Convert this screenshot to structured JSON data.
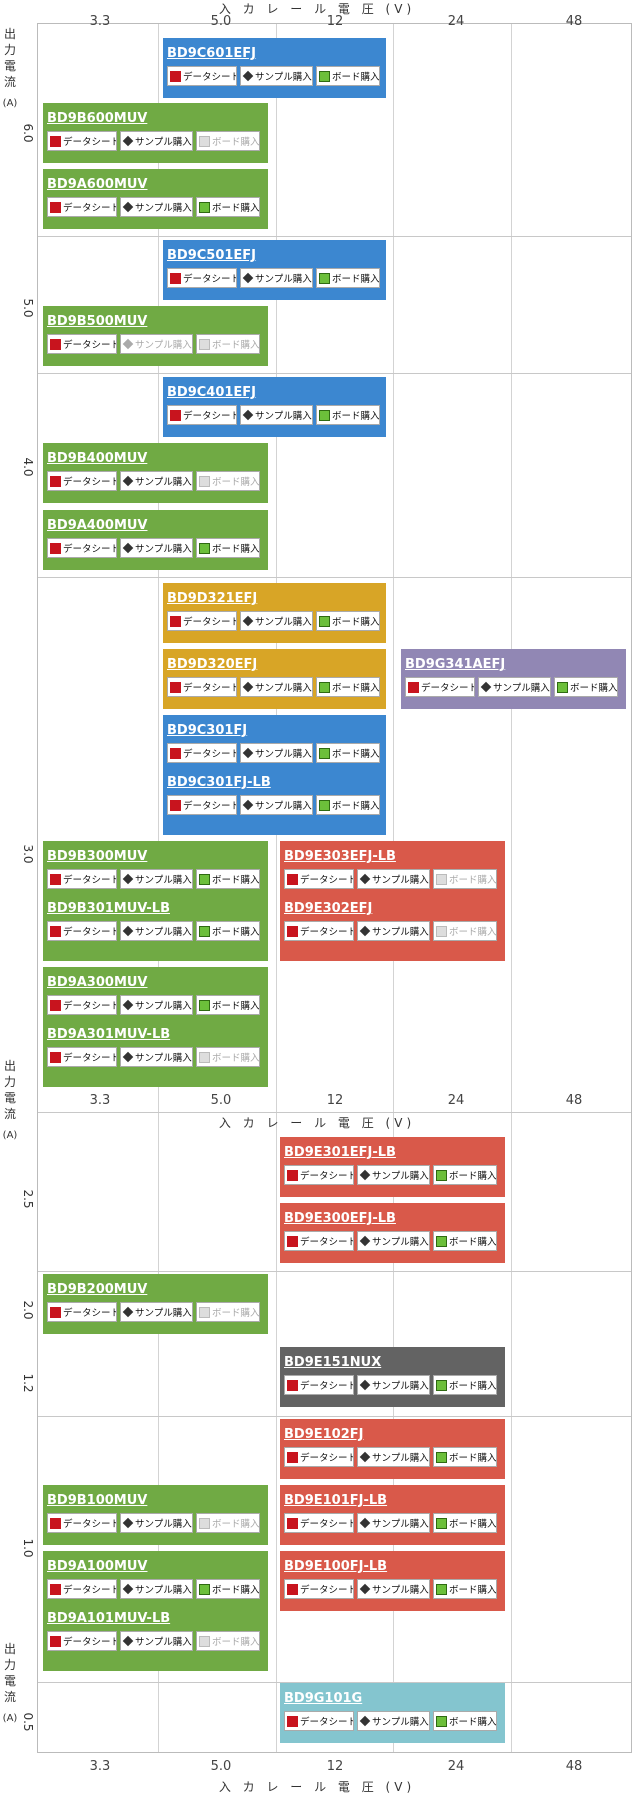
{
  "x_axis": {
    "title": "入 カ レ ー ル 電 圧 (V)",
    "ticks": [
      "3.3",
      "5.0",
      "12",
      "24",
      "48"
    ]
  },
  "y_axis": {
    "chars": [
      "出",
      "力",
      "電",
      "流"
    ],
    "unit": "(A)",
    "ticks": [
      "6.0",
      "5.0",
      "4.0",
      "3.0",
      "2.5",
      "2.0",
      "1.2",
      "1.0",
      "0.5"
    ]
  },
  "buttons": {
    "datasheet": "データシート",
    "sample": "サンプル購入",
    "board": "ボード購入"
  },
  "colors": {
    "green": "#70aa44",
    "blue": "#3c87d0",
    "gold": "#d8a526",
    "purple": "#9187b4",
    "red": "#d9594a",
    "gray": "#636363",
    "cyan": "#84c5cf"
  },
  "products": [
    {
      "name": "BD9C601EFJ",
      "color": "blue",
      "sample": true,
      "board": true
    },
    {
      "name": "BD9B600MUV",
      "color": "green",
      "sample": true,
      "board": false
    },
    {
      "name": "BD9A600MUV",
      "color": "green",
      "sample": true,
      "board": true
    },
    {
      "name": "BD9C501EFJ",
      "color": "blue",
      "sample": true,
      "board": true
    },
    {
      "name": "BD9B500MUV",
      "color": "green",
      "sample": false,
      "board": false
    },
    {
      "name": "BD9C401EFJ",
      "color": "blue",
      "sample": true,
      "board": true
    },
    {
      "name": "BD9B400MUV",
      "color": "green",
      "sample": true,
      "board": false
    },
    {
      "name": "BD9A400MUV",
      "color": "green",
      "sample": true,
      "board": true
    },
    {
      "name": "BD9D321EFJ",
      "color": "gold",
      "sample": true,
      "board": true
    },
    {
      "name": "BD9D320EFJ",
      "color": "gold",
      "sample": true,
      "board": true
    },
    {
      "name": "BD9G341AEFJ",
      "color": "purple",
      "sample": true,
      "board": true
    },
    {
      "name": "BD9C301FJ",
      "color": "blue",
      "sample": true,
      "board": true
    },
    {
      "name": "BD9C301FJ-LB",
      "color": "blue",
      "sample": true,
      "board": true
    },
    {
      "name": "BD9B300MUV",
      "color": "green",
      "sample": true,
      "board": true
    },
    {
      "name": "BD9B301MUV-LB",
      "color": "green",
      "sample": true,
      "board": true
    },
    {
      "name": "BD9E303EFJ-LB",
      "color": "red",
      "sample": true,
      "board": false
    },
    {
      "name": "BD9E302EFJ",
      "color": "red",
      "sample": true,
      "board": false
    },
    {
      "name": "BD9A300MUV",
      "color": "green",
      "sample": true,
      "board": true
    },
    {
      "name": "BD9A301MUV-LB",
      "color": "green",
      "sample": true,
      "board": false
    },
    {
      "name": "BD9E301EFJ-LB",
      "color": "red",
      "sample": true,
      "board": true
    },
    {
      "name": "BD9E300EFJ-LB",
      "color": "red",
      "sample": true,
      "board": true
    },
    {
      "name": "BD9B200MUV",
      "color": "green",
      "sample": true,
      "board": false
    },
    {
      "name": "BD9E151NUX",
      "color": "gray",
      "sample": true,
      "board": true
    },
    {
      "name": "BD9E102FJ",
      "color": "red",
      "sample": true,
      "board": true
    },
    {
      "name": "BD9B100MUV",
      "color": "green",
      "sample": true,
      "board": false
    },
    {
      "name": "BD9E101FJ-LB",
      "color": "red",
      "sample": true,
      "board": true
    },
    {
      "name": "BD9A100MUV",
      "color": "green",
      "sample": true,
      "board": true
    },
    {
      "name": "BD9E100FJ-LB",
      "color": "red",
      "sample": true,
      "board": true
    },
    {
      "name": "BD9A101MUV-LB",
      "color": "green",
      "sample": true,
      "board": false
    },
    {
      "name": "BD9G101G",
      "color": "cyan",
      "sample": true,
      "board": true
    }
  ]
}
